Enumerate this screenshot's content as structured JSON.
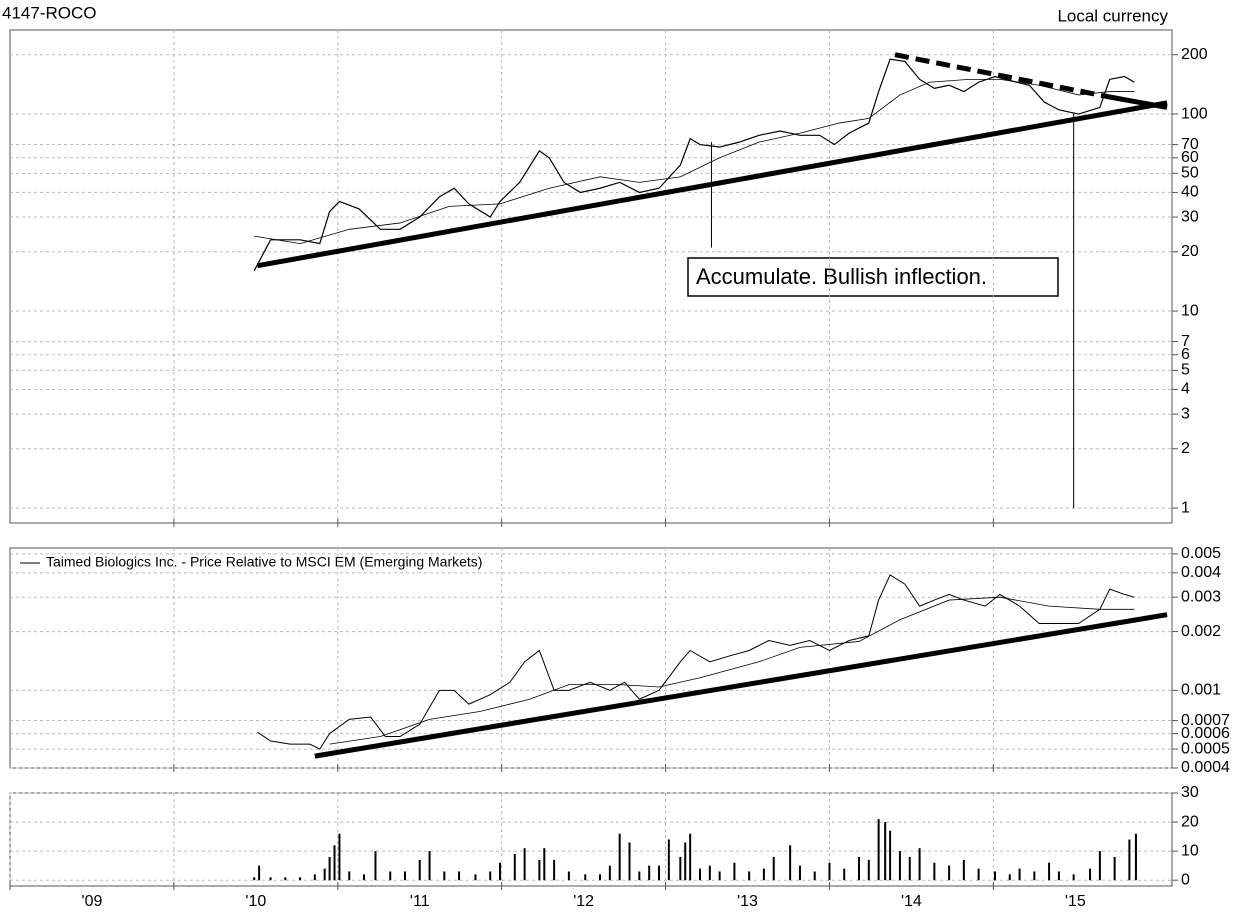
{
  "chart_data": [
    {
      "type": "line",
      "title": "4147-ROCO",
      "subtitle": "Local currency",
      "log_scale": true,
      "grid": true,
      "xlim": [
        2009,
        2016.09
      ],
      "xticks": [
        2010,
        2011,
        2012,
        2013,
        2014,
        2015
      ],
      "ylim": [
        0.84,
        267
      ],
      "yticks": [
        1,
        2,
        3,
        4,
        5,
        6,
        7,
        10,
        20,
        30,
        40,
        50,
        60,
        70,
        100,
        200
      ],
      "series": [
        {
          "color": "#000000",
          "width": 1.2,
          "x": [
            2010.49,
            2010.59,
            2010.77,
            2010.89,
            2010.95,
            2011.01,
            2011.13,
            2011.26,
            2011.38,
            2011.5,
            2011.62,
            2011.71,
            2011.8,
            2011.93,
            2011.99,
            2012.11,
            2012.23,
            2012.29,
            2012.38,
            2012.48,
            2012.6,
            2012.72,
            2012.84,
            2012.96,
            2013.09,
            2013.15,
            2013.21,
            2013.33,
            2013.45,
            2013.57,
            2013.7,
            2013.82,
            2013.94,
            2014.03,
            2014.12,
            2014.24,
            2014.3,
            2014.37,
            2014.46,
            2014.55,
            2014.64,
            2014.73,
            2014.82,
            2014.91,
            2015.01,
            2015.1,
            2015.22,
            2015.31,
            2015.4,
            2015.52,
            2015.65,
            2015.71,
            2015.8,
            2015.86
          ],
          "values": [
            16,
            23,
            23,
            22,
            32,
            36,
            33,
            26,
            26,
            30,
            38,
            42,
            35,
            30,
            36,
            45,
            65,
            60,
            45,
            40,
            42,
            45,
            40,
            42,
            55,
            75,
            70,
            68,
            72,
            78,
            82,
            78,
            78,
            70,
            80,
            90,
            130,
            190,
            185,
            150,
            135,
            140,
            130,
            145,
            155,
            148,
            140,
            115,
            105,
            100,
            108,
            150,
            155,
            145
          ]
        },
        {
          "color": "#000000",
          "width": 0.8,
          "x": [
            2010.49,
            2010.77,
            2011.07,
            2011.38,
            2011.68,
            2011.99,
            2012.29,
            2012.6,
            2012.84,
            2013.09,
            2013.33,
            2013.57,
            2013.82,
            2014.06,
            2014.24,
            2014.43,
            2014.61,
            2014.85,
            2015.04,
            2015.28,
            2015.52,
            2015.71,
            2015.86
          ],
          "values": [
            24,
            22,
            26,
            28,
            34,
            35,
            42,
            48,
            45,
            48,
            60,
            72,
            80,
            90,
            95,
            125,
            145,
            150,
            150,
            140,
            125,
            130,
            130
          ]
        }
      ],
      "trendlines": [
        {
          "x": [
            2010.51,
            2016.06
          ],
          "y": [
            17,
            114
          ],
          "style": "solid"
        },
        {
          "x": [
            2014.4,
            2015.71
          ],
          "y": [
            200,
            122
          ],
          "style": "dashed"
        },
        {
          "x": [
            2015.71,
            2016.06
          ],
          "y": [
            122,
            108
          ],
          "style": "solid"
        }
      ],
      "markers": [
        {
          "x": 2013.28,
          "y": [
            72,
            21
          ]
        },
        {
          "x": 2015.49,
          "y": [
            100,
            1
          ]
        }
      ],
      "annotation": "Accumulate. Bullish inflection."
    },
    {
      "type": "line",
      "log_scale": true,
      "grid": true,
      "xlim": [
        2009,
        2016.09
      ],
      "xticks": [
        2010,
        2011,
        2012,
        2013,
        2014,
        2015
      ],
      "ylim": [
        0.0004,
        0.00536
      ],
      "yticks": [
        0.0004,
        0.0005,
        0.0006,
        0.0007,
        0.001,
        0.002,
        0.003,
        0.004,
        0.005
      ],
      "series": [
        {
          "name": "Taimed Biologics Inc. - Price Relative to MSCI EM (Emerging Markets)",
          "color": "#000000",
          "width": 1,
          "x": [
            2010.51,
            2010.59,
            2010.71,
            2010.83,
            2010.89,
            2010.95,
            2011.07,
            2011.2,
            2011.29,
            2011.38,
            2011.5,
            2011.62,
            2011.71,
            2011.8,
            2011.93,
            2012.05,
            2012.14,
            2012.23,
            2012.32,
            2012.41,
            2012.54,
            2012.66,
            2012.75,
            2012.84,
            2012.96,
            2013.09,
            2013.15,
            2013.27,
            2013.39,
            2013.51,
            2013.63,
            2013.76,
            2013.88,
            2014.0,
            2014.12,
            2014.24,
            2014.3,
            2014.37,
            2014.46,
            2014.55,
            2014.64,
            2014.73,
            2014.82,
            2014.95,
            2015.04,
            2015.16,
            2015.28,
            2015.4,
            2015.52,
            2015.65,
            2015.71,
            2015.8,
            2015.86
          ],
          "values": [
            0.00061,
            0.00055,
            0.00053,
            0.00053,
            0.0005,
            0.0006,
            0.00071,
            0.00073,
            0.00058,
            0.00058,
            0.00067,
            0.001,
            0.001,
            0.00085,
            0.00095,
            0.0011,
            0.0014,
            0.0016,
            0.001,
            0.001,
            0.0011,
            0.001,
            0.0011,
            0.0009,
            0.001,
            0.0014,
            0.0016,
            0.0014,
            0.0015,
            0.0016,
            0.0018,
            0.0017,
            0.0018,
            0.0016,
            0.0018,
            0.0019,
            0.0029,
            0.0039,
            0.0035,
            0.0027,
            0.0029,
            0.0031,
            0.0029,
            0.0027,
            0.0031,
            0.0027,
            0.0022,
            0.0022,
            0.0022,
            0.0026,
            0.0033,
            0.0031,
            0.003
          ]
        },
        {
          "color": "#000000",
          "width": 0.8,
          "x": [
            2010.95,
            2011.26,
            2011.56,
            2011.87,
            2012.17,
            2012.41,
            2012.72,
            2012.96,
            2013.21,
            2013.57,
            2013.82,
            2014.18,
            2014.43,
            2014.73,
            2015.04,
            2015.34,
            2015.65,
            2015.86
          ],
          "values": [
            0.00053,
            0.00058,
            0.00071,
            0.00078,
            0.0009,
            0.00107,
            0.00107,
            0.00104,
            0.00116,
            0.0014,
            0.00166,
            0.00178,
            0.0023,
            0.0029,
            0.003,
            0.0027,
            0.0026,
            0.0026
          ]
        }
      ],
      "trendlines": [
        {
          "x": [
            2010.86,
            2016.06
          ],
          "y": [
            0.00046,
            0.00244
          ],
          "style": "solid"
        }
      ]
    },
    {
      "type": "bar",
      "grid": true,
      "color": "#000000",
      "xlim": [
        2009,
        2016.09
      ],
      "xticks": [
        {
          "value": 2009,
          "label": "'09"
        },
        {
          "value": 2010,
          "label": "'10"
        },
        {
          "value": 2011,
          "label": "'11"
        },
        {
          "value": 2012,
          "label": "'12"
        },
        {
          "value": 2013,
          "label": "'13"
        },
        {
          "value": 2014,
          "label": "'14"
        },
        {
          "value": 2015,
          "label": "'15"
        }
      ],
      "ylim": [
        -2,
        30
      ],
      "yticks": [
        0,
        10,
        20,
        30
      ],
      "x": [
        2010.49,
        2010.52,
        2010.59,
        2010.68,
        2010.77,
        2010.86,
        2010.92,
        2010.95,
        2010.98,
        2011.01,
        2011.07,
        2011.16,
        2011.23,
        2011.32,
        2011.41,
        2011.5,
        2011.56,
        2011.65,
        2011.74,
        2011.84,
        2011.93,
        2011.99,
        2012.08,
        2012.14,
        2012.23,
        2012.26,
        2012.32,
        2012.41,
        2012.51,
        2012.6,
        2012.66,
        2012.72,
        2012.78,
        2012.84,
        2012.9,
        2012.96,
        2013.02,
        2013.09,
        2013.12,
        2013.15,
        2013.21,
        2013.27,
        2013.33,
        2013.42,
        2013.51,
        2013.6,
        2013.66,
        2013.76,
        2013.82,
        2013.91,
        2014.0,
        2014.09,
        2014.18,
        2014.24,
        2014.3,
        2014.34,
        2014.37,
        2014.43,
        2014.49,
        2014.55,
        2014.64,
        2014.73,
        2014.82,
        2014.91,
        2015.01,
        2015.1,
        2015.16,
        2015.25,
        2015.34,
        2015.4,
        2015.49,
        2015.59,
        2015.65,
        2015.74,
        2015.83,
        2015.87
      ],
      "values": [
        1,
        5,
        1,
        1,
        1,
        2,
        4,
        8,
        12,
        16,
        3,
        2,
        10,
        3,
        3,
        7,
        10,
        3,
        3,
        2,
        3,
        6,
        9,
        11,
        7,
        11,
        7,
        3,
        2,
        2,
        5,
        16,
        13,
        3,
        5,
        5,
        14,
        8,
        13,
        16,
        4,
        5,
        3,
        6,
        3,
        4,
        8,
        12,
        5,
        3,
        6,
        4,
        8,
        7,
        21,
        20,
        17,
        10,
        8,
        11,
        6,
        5,
        7,
        4,
        3,
        2,
        4,
        3,
        6,
        3,
        2,
        4,
        10,
        8,
        14,
        16
      ]
    }
  ]
}
